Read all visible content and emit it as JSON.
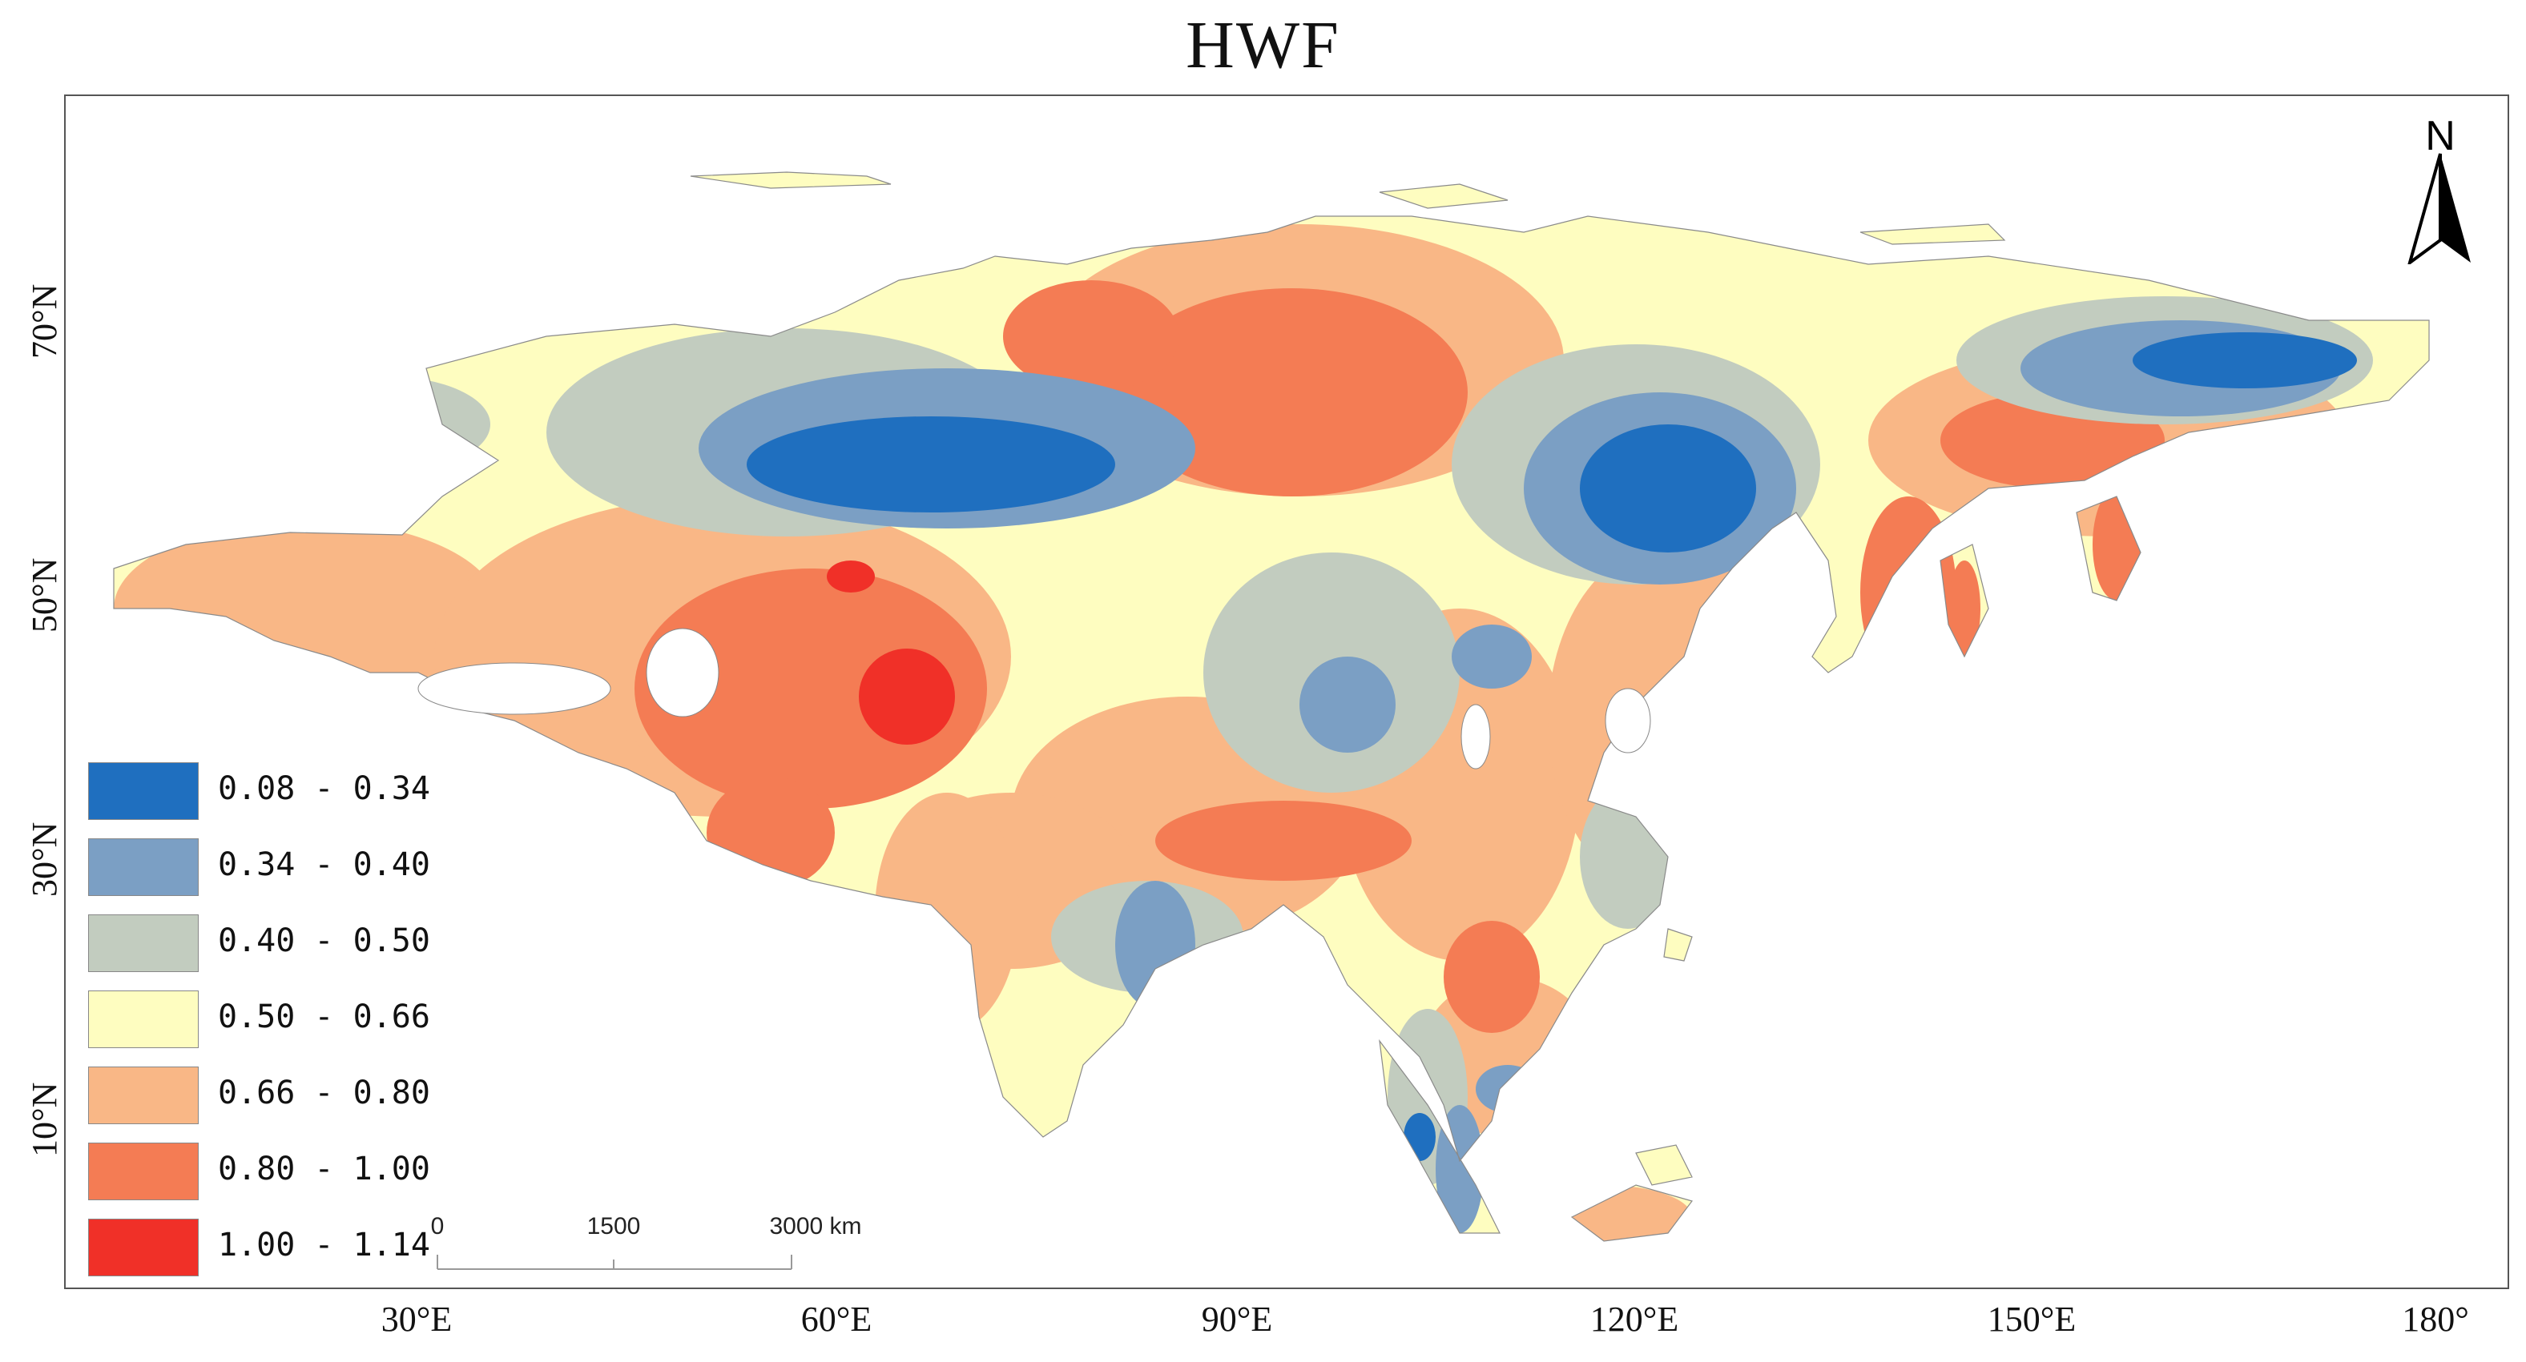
{
  "title": "HWF",
  "axes": {
    "x_ticks": [
      "30°E",
      "60°E",
      "90°E",
      "120°E",
      "150°E",
      "180°"
    ],
    "y_ticks": [
      "70°N",
      "50°N",
      "30°N",
      "10°N"
    ]
  },
  "legend": {
    "items": [
      {
        "label": "0.08 - 0.34",
        "color": "#1f6fbf"
      },
      {
        "label": "0.34 - 0.40",
        "color": "#7b9fc4"
      },
      {
        "label": "0.40 - 0.50",
        "color": "#c2ccbf"
      },
      {
        "label": "0.50 - 0.66",
        "color": "#fefdc0"
      },
      {
        "label": "0.66 - 0.80",
        "color": "#f9b786"
      },
      {
        "label": "0.80 - 1.00",
        "color": "#f47c54"
      },
      {
        "label": "1.00 - 1.14",
        "color": "#f03028"
      }
    ]
  },
  "scale_bar": {
    "labels": [
      "0",
      "1500",
      "3000 km"
    ]
  },
  "north_arrow": {
    "label": "N",
    "icon": "north-arrow-icon"
  }
}
